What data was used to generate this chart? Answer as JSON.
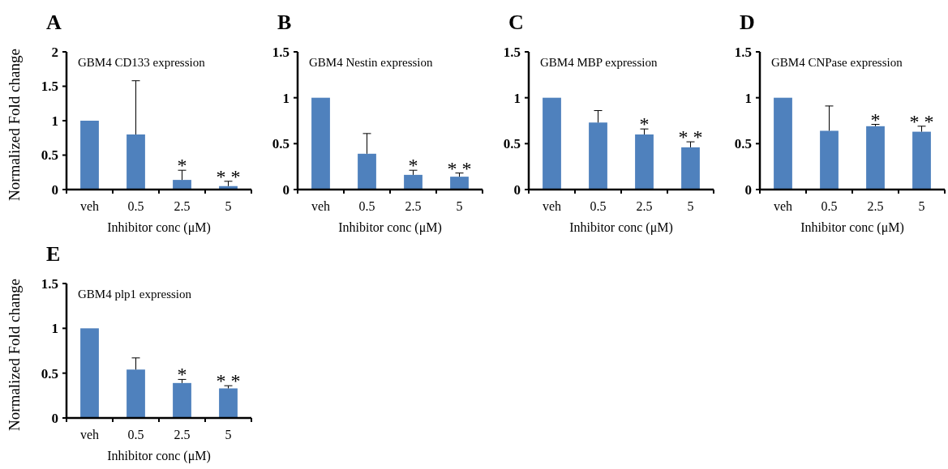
{
  "chart_data": [
    {
      "type": "bar",
      "title": "A",
      "subtitle": "GBM4 CD133 expression",
      "xlabel": "Inhibitor conc (μM)",
      "ylabel": "Normalized Fold change",
      "categories": [
        "veh",
        "0.5",
        "2.5",
        "5"
      ],
      "color": "#4f81bd",
      "values": [
        1.0,
        0.8,
        0.14,
        0.05
      ],
      "errors": [
        null,
        [
          0.8,
          1.58
        ],
        [
          0.14,
          0.28
        ],
        [
          0.05,
          0.12
        ]
      ],
      "ylim": [
        0,
        2
      ],
      "yticks": [
        0,
        0.5,
        1,
        1.5,
        2
      ],
      "grid": false,
      "annotations": [
        "*",
        "* *"
      ]
    },
    {
      "type": "bar",
      "title": "B",
      "subtitle": "GBM4 Nestin expression",
      "xlabel": "Inhibitor conc (μM)",
      "categories": [
        "veh",
        "0.5",
        "2.5",
        "5"
      ],
      "color": "#4f81bd",
      "values": [
        1.0,
        0.39,
        0.16,
        0.14
      ],
      "errors": [
        null,
        [
          0.39,
          0.61
        ],
        [
          0.16,
          0.21
        ],
        [
          0.14,
          0.18
        ]
      ],
      "ylim": [
        0,
        1.5
      ],
      "yticks": [
        0,
        0.5,
        1,
        1.5
      ],
      "grid": false,
      "annotations": [
        "*",
        "* *"
      ]
    },
    {
      "type": "bar",
      "title": "C",
      "subtitle": "GBM4 MBP expression",
      "xlabel": "Inhibitor conc (μM)",
      "categories": [
        "veh",
        "0.5",
        "2.5",
        "5"
      ],
      "color": "#4f81bd",
      "values": [
        1.0,
        0.73,
        0.6,
        0.46
      ],
      "errors": [
        null,
        [
          0.73,
          0.86
        ],
        [
          0.6,
          0.66
        ],
        [
          0.46,
          0.52
        ]
      ],
      "ylim": [
        0,
        1.5
      ],
      "yticks": [
        0,
        0.5,
        1,
        1.5
      ],
      "grid": false,
      "annotations": [
        "*",
        "* *"
      ]
    },
    {
      "type": "bar",
      "title": "D",
      "subtitle": "GBM4 CNPase expression",
      "xlabel": "Inhibitor conc (μM)",
      "categories": [
        "veh",
        "0.5",
        "2.5",
        "5"
      ],
      "color": "#4f81bd",
      "values": [
        1.0,
        0.64,
        0.69,
        0.63
      ],
      "errors": [
        null,
        [
          0.64,
          0.91
        ],
        [
          0.69,
          0.71
        ],
        [
          0.63,
          0.69
        ]
      ],
      "ylim": [
        0,
        1.5
      ],
      "yticks": [
        0,
        0.5,
        1,
        1.5
      ],
      "grid": false,
      "annotations": [
        "*",
        "* *"
      ]
    },
    {
      "type": "bar",
      "title": "E",
      "subtitle": "GBM4 plp1 expression",
      "xlabel": "Inhibitor conc (μM)",
      "ylabel": "Normalized Fold change",
      "categories": [
        "veh",
        "0.5",
        "2.5",
        "5"
      ],
      "color": "#4f81bd",
      "values": [
        1.0,
        0.54,
        0.39,
        0.33
      ],
      "errors": [
        null,
        [
          0.54,
          0.67
        ],
        [
          0.39,
          0.43
        ],
        [
          0.33,
          0.36
        ]
      ],
      "ylim": [
        0,
        1.5
      ],
      "yticks": [
        0,
        0.5,
        1,
        1.5
      ],
      "grid": false,
      "annotations": [
        "*",
        "* *"
      ]
    }
  ]
}
